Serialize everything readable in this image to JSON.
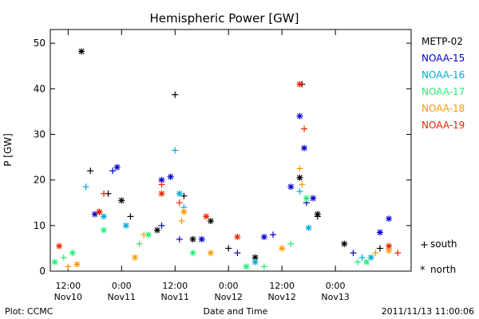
{
  "chart_data": {
    "type": "scatter",
    "title": "Hemispheric Power [GW]",
    "xlabel": "Date and Time",
    "ylabel": "P [GW]",
    "ylim": [
      0,
      53
    ],
    "xlim": [
      "2011-11-10T08:00",
      "2011-11-13T17:00"
    ],
    "yticks": [
      0,
      10,
      20,
      30,
      40,
      50
    ],
    "xticks": [
      {
        "t": "2011-11-10T12:00",
        "line1": "12:00",
        "line2": "Nov10"
      },
      {
        "t": "2011-11-11T00:00",
        "line1": "0:00",
        "line2": "Nov11"
      },
      {
        "t": "2011-11-11T12:00",
        "line1": "12:00",
        "line2": "Nov11"
      },
      {
        "t": "2011-11-12T00:00",
        "line1": "0:00",
        "line2": "Nov12"
      },
      {
        "t": "2011-11-12T12:00",
        "line1": "12:00",
        "line2": "Nov12"
      },
      {
        "t": "2011-11-13T00:00",
        "line1": "0:00",
        "line2": "Nov13"
      }
    ],
    "grid": false,
    "legend_position": "right",
    "markers": {
      "south": "+",
      "north": "*"
    },
    "series": [
      {
        "name": "METP-02",
        "color": "#000000",
        "south": [
          [
            "2011-11-10T17:00",
            22
          ],
          [
            "2011-11-10T21:00",
            17
          ],
          [
            "2011-11-11T02:00",
            12
          ],
          [
            "2011-11-11T12:00",
            38.7
          ],
          [
            "2011-11-11T14:00",
            16.5
          ],
          [
            "2011-11-12T00:00",
            5
          ],
          [
            "2011-11-12T16:30",
            41
          ],
          [
            "2011-11-12T20:00",
            12
          ],
          [
            "2011-11-13T10:00",
            5
          ]
        ],
        "north": [
          [
            "2011-11-10T15:00",
            48.2
          ],
          [
            "2011-11-10T19:00",
            13
          ],
          [
            "2011-11-11T00:00",
            15.5
          ],
          [
            "2011-11-11T08:00",
            9
          ],
          [
            "2011-11-11T16:00",
            7
          ],
          [
            "2011-11-11T20:00",
            11
          ],
          [
            "2011-11-12T06:00",
            3
          ],
          [
            "2011-11-12T16:00",
            20.5
          ],
          [
            "2011-11-12T20:00",
            12.5
          ],
          [
            "2011-11-13T02:00",
            6
          ]
        ]
      },
      {
        "name": "NOAA-15",
        "color": "#0000cc",
        "south": [
          [
            "2011-11-10T22:00",
            22
          ],
          [
            "2011-11-11T09:00",
            10
          ],
          [
            "2011-11-11T13:00",
            7
          ],
          [
            "2011-11-12T02:00",
            4
          ],
          [
            "2011-11-12T10:00",
            8
          ],
          [
            "2011-11-12T17:30",
            15
          ],
          [
            "2011-11-13T04:00",
            4
          ]
        ],
        "north": [
          [
            "2011-11-10T18:00",
            12.5
          ],
          [
            "2011-11-10T23:00",
            22.8
          ],
          [
            "2011-11-11T09:00",
            20
          ],
          [
            "2011-11-11T11:00",
            20.7
          ],
          [
            "2011-11-11T18:00",
            7
          ],
          [
            "2011-11-12T08:00",
            7.5
          ],
          [
            "2011-11-12T14:00",
            18.5
          ],
          [
            "2011-11-12T16:00",
            34
          ],
          [
            "2011-11-12T17:00",
            27
          ],
          [
            "2011-11-12T19:00",
            16
          ],
          [
            "2011-11-13T10:00",
            8.5
          ],
          [
            "2011-11-13T12:00",
            11.5
          ]
        ]
      },
      {
        "name": "NOAA-16",
        "color": "#00aadd",
        "south": [
          [
            "2011-11-10T16:00",
            18.5
          ],
          [
            "2011-11-11T12:00",
            26.5
          ],
          [
            "2011-11-11T14:00",
            14
          ],
          [
            "2011-11-12T16:00",
            17.5
          ],
          [
            "2011-11-13T06:00",
            3
          ]
        ],
        "north": [
          [
            "2011-11-10T20:00",
            12
          ],
          [
            "2011-11-11T01:00",
            10
          ],
          [
            "2011-11-11T13:00",
            17
          ],
          [
            "2011-11-12T06:00",
            2
          ],
          [
            "2011-11-12T18:00",
            9.5
          ],
          [
            "2011-11-13T08:00",
            3
          ]
        ]
      },
      {
        "name": "NOAA-17",
        "color": "#22ee77",
        "south": [
          [
            "2011-11-10T11:00",
            3
          ],
          [
            "2011-11-11T04:00",
            6
          ],
          [
            "2011-11-12T08:00",
            1
          ],
          [
            "2011-11-12T14:00",
            6
          ],
          [
            "2011-11-13T05:00",
            2
          ]
        ],
        "north": [
          [
            "2011-11-10T09:00",
            2
          ],
          [
            "2011-11-10T13:00",
            4
          ],
          [
            "2011-11-10T20:00",
            9
          ],
          [
            "2011-11-11T06:00",
            8
          ],
          [
            "2011-11-11T16:00",
            4
          ],
          [
            "2011-11-12T04:00",
            1
          ],
          [
            "2011-11-12T17:30",
            16
          ],
          [
            "2011-11-13T07:00",
            2
          ]
        ]
      },
      {
        "name": "NOAA-18",
        "color": "#ff9900",
        "south": [
          [
            "2011-11-10T12:00",
            1
          ],
          [
            "2011-11-11T05:00",
            8
          ],
          [
            "2011-11-11T13:30",
            11
          ],
          [
            "2011-11-12T16:00",
            22.5
          ],
          [
            "2011-11-12T16:30",
            19
          ],
          [
            "2011-11-13T09:00",
            4
          ]
        ],
        "north": [
          [
            "2011-11-10T14:00",
            1.5
          ],
          [
            "2011-11-11T03:00",
            3
          ],
          [
            "2011-11-11T14:00",
            13
          ],
          [
            "2011-11-11T20:00",
            4
          ],
          [
            "2011-11-12T12:00",
            5
          ],
          [
            "2011-11-13T12:00",
            4.5
          ]
        ]
      },
      {
        "name": "NOAA-19",
        "color": "#ee2200",
        "south": [
          [
            "2011-11-10T20:00",
            17
          ],
          [
            "2011-11-11T09:00",
            19
          ],
          [
            "2011-11-11T13:00",
            15
          ],
          [
            "2011-11-12T17:00",
            31.2
          ],
          [
            "2011-11-13T14:00",
            4
          ]
        ],
        "north": [
          [
            "2011-11-10T10:00",
            5.5
          ],
          [
            "2011-11-10T19:00",
            13
          ],
          [
            "2011-11-11T09:00",
            17
          ],
          [
            "2011-11-11T19:00",
            12
          ],
          [
            "2011-11-12T02:00",
            7.5
          ],
          [
            "2011-11-12T16:00",
            41
          ],
          [
            "2011-11-13T12:00",
            5.5
          ]
        ]
      }
    ]
  },
  "legend": {
    "south_label": "south",
    "north_label": "north"
  },
  "footer": {
    "left": "Plot: CCMC",
    "right": "2011/11/13 11:00:06"
  }
}
